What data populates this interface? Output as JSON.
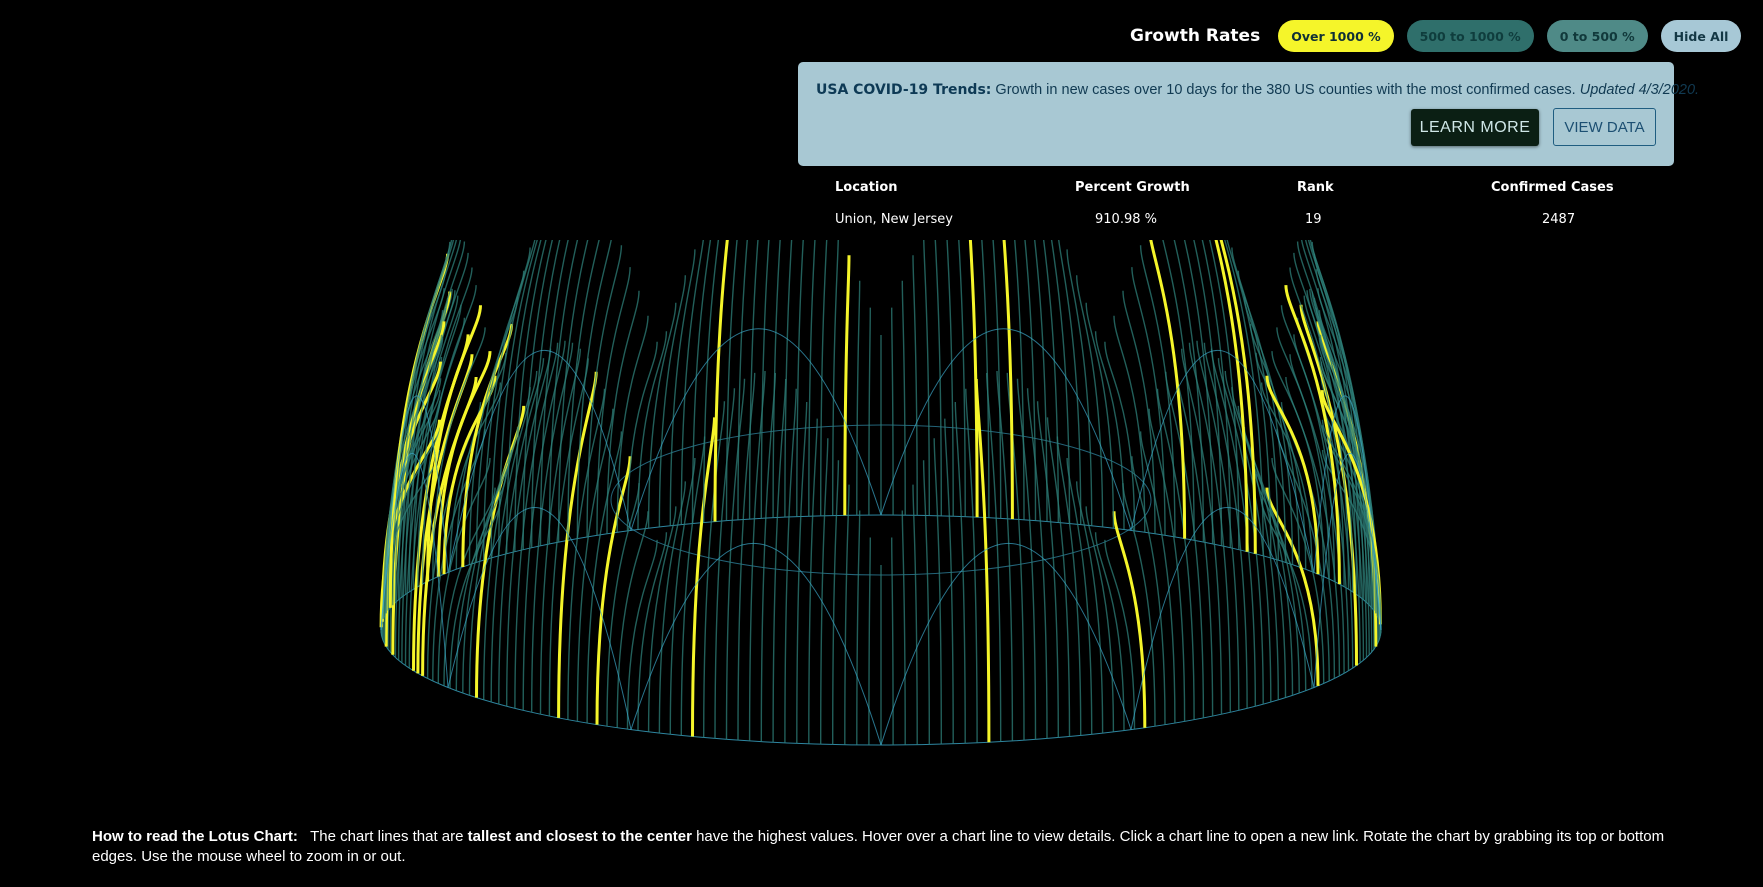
{
  "filters": {
    "title": "Growth Rates",
    "buttons": [
      {
        "label": "Over 1000 %"
      },
      {
        "label": "500 to 1000 %"
      },
      {
        "label": "0 to 500 %"
      },
      {
        "label": "Hide All"
      }
    ]
  },
  "info": {
    "heading": "USA COVID-19 Trends:",
    "description": "Growth in new cases over 10 days for the 380 US counties with the most confirmed cases.",
    "updated": "Updated 4/3/2020.",
    "learn_more": "LEARN MORE",
    "view_data": "VIEW DATA"
  },
  "table": {
    "headers": [
      "Location",
      "Percent Growth",
      "Rank",
      "Confirmed Cases"
    ],
    "row": [
      "Union, New Jersey",
      "910.98 %",
      "19",
      "2487"
    ]
  },
  "howto": {
    "label": "How to read the Lotus Chart:",
    "part1": "The chart lines that are",
    "emphasis": "tallest and closest to the center",
    "part2": "have the highest values. Hover over a chart line to view details. Click a chart line to open a new link. Rotate the chart by grabbing its top or bottom edges. Use the mouse wheel to zoom in or out."
  },
  "colors": {
    "highlight": "#f5f52a",
    "line": "#2e7f78",
    "outline": "#3aa7c9"
  }
}
